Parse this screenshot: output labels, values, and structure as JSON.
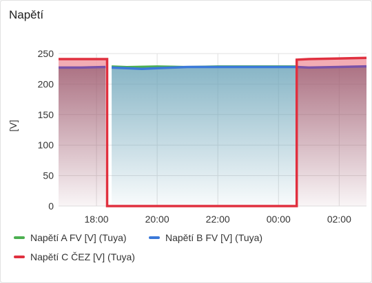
{
  "card": {
    "title": "Napětí"
  },
  "chart_data": {
    "type": "line",
    "title": "",
    "ylabel": "[V]",
    "xlabel": "",
    "ylim": [
      0,
      250
    ],
    "yticks": [
      0,
      50,
      100,
      150,
      200,
      250
    ],
    "xlim_hours": [
      16.75,
      26.9
    ],
    "xticks": [
      {
        "label": "18:00",
        "hour": 18
      },
      {
        "label": "20:00",
        "hour": 20
      },
      {
        "label": "22:00",
        "hour": 22
      },
      {
        "label": "00:00",
        "hour": 24
      },
      {
        "label": "02:00",
        "hour": 26
      }
    ],
    "grid": true,
    "legend": "bottom",
    "series": [
      {
        "name": "Napětí A FV [V] (Tuya)",
        "color": "#4caf50",
        "points": [
          [
            18.5,
            229
          ],
          [
            19.0,
            228
          ],
          [
            20.0,
            229
          ],
          [
            21.0,
            228
          ],
          [
            22.0,
            229
          ],
          [
            23.0,
            229
          ],
          [
            24.0,
            229
          ],
          [
            24.6,
            229
          ]
        ]
      },
      {
        "name": "Napětí B FV [V] (Tuya)",
        "color": "#3b79d9",
        "points": [
          [
            16.75,
            227
          ],
          [
            17.5,
            227
          ],
          [
            18.3,
            228
          ],
          [
            18.5,
            227
          ],
          [
            19.0,
            226
          ],
          [
            19.5,
            225
          ],
          [
            20.0,
            226
          ],
          [
            20.5,
            227
          ],
          [
            21.0,
            228
          ],
          [
            22.0,
            228
          ],
          [
            23.0,
            228
          ],
          [
            24.0,
            228
          ],
          [
            24.6,
            228
          ],
          [
            25.0,
            227
          ],
          [
            26.0,
            228
          ],
          [
            26.9,
            229
          ]
        ]
      },
      {
        "name": "Napětí C ČEZ [V] (Tuya)",
        "color": "#e0303f",
        "points": [
          [
            16.75,
            241
          ],
          [
            17.5,
            241
          ],
          [
            18.35,
            241
          ],
          [
            18.35,
            0
          ],
          [
            18.5,
            0
          ],
          [
            20.0,
            0
          ],
          [
            22.0,
            0
          ],
          [
            24.0,
            0
          ],
          [
            24.6,
            0
          ],
          [
            24.6,
            240
          ],
          [
            25.0,
            241
          ],
          [
            26.0,
            242
          ],
          [
            26.9,
            243
          ]
        ]
      }
    ]
  }
}
